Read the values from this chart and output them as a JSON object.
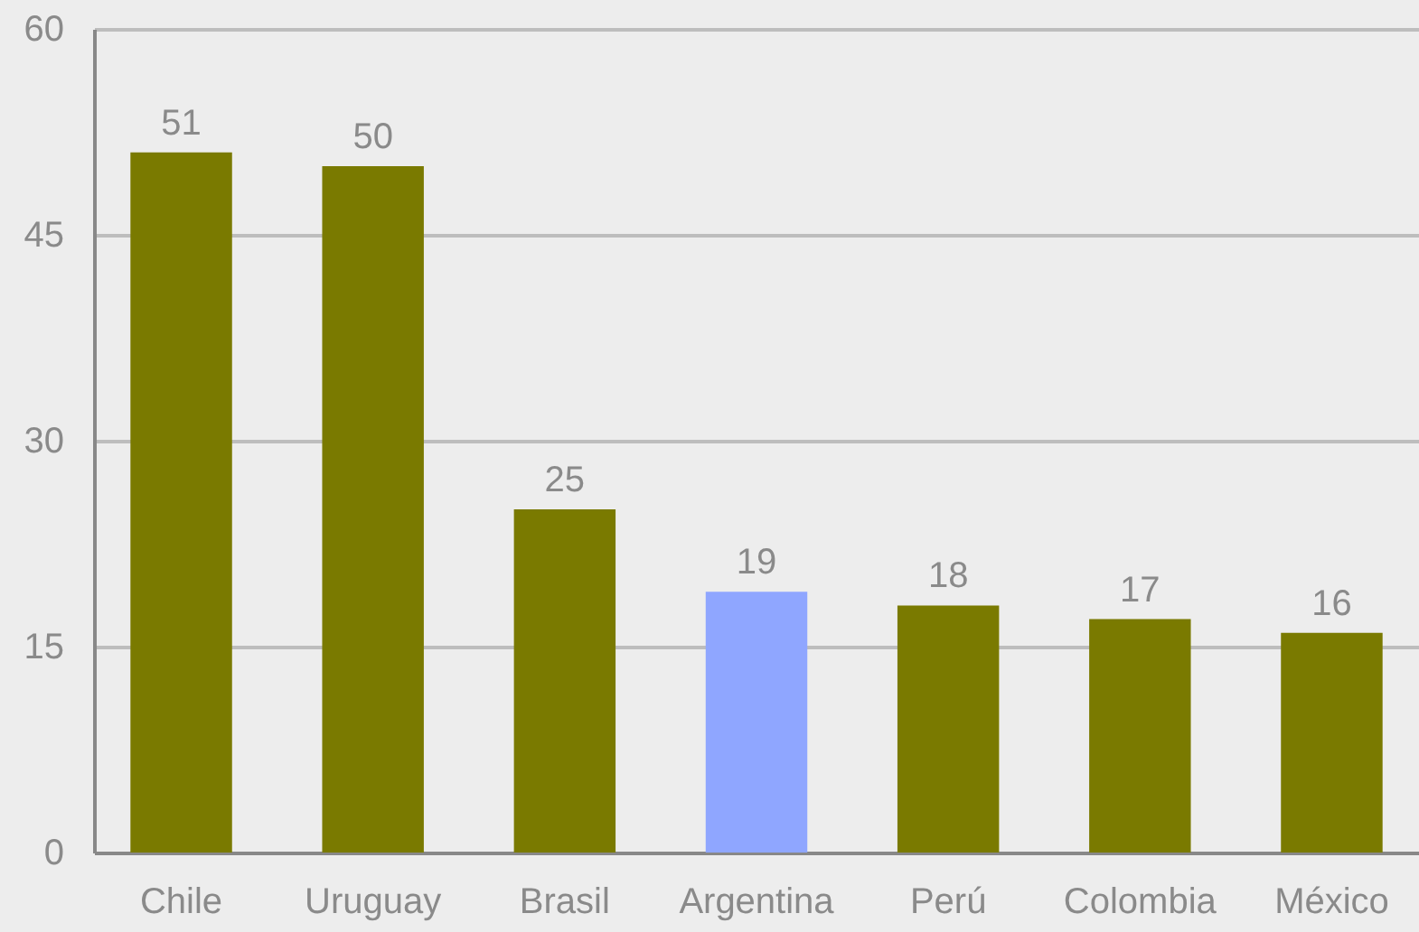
{
  "chart_data": {
    "type": "bar",
    "categories": [
      "Chile",
      "Uruguay",
      "Brasil",
      "Argentina",
      "Perú",
      "Colombia",
      "México"
    ],
    "values": [
      51,
      50,
      25,
      19,
      18,
      17,
      16
    ],
    "colors": [
      "#7a7a00",
      "#7a7a00",
      "#7a7a00",
      "#8fa6ff",
      "#7a7a00",
      "#7a7a00",
      "#7a7a00"
    ],
    "ylim": [
      0,
      60
    ],
    "yticks": [
      0,
      15,
      30,
      45,
      60
    ],
    "grid": "y",
    "data_labels": true
  }
}
